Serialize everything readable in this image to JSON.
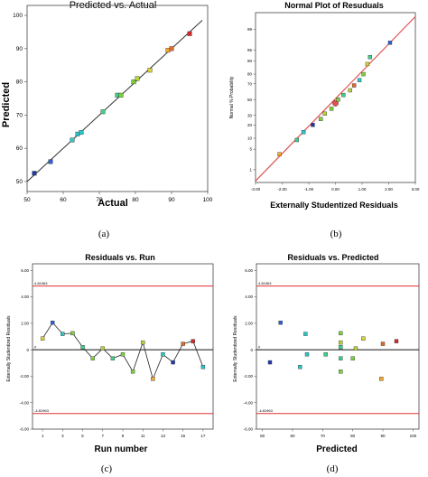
{
  "figure": {
    "captions": [
      "(a)",
      "(b)",
      "(c)",
      "(d)"
    ],
    "palette": [
      "#1f3aa8",
      "#2c5fd6",
      "#2ea8d8",
      "#2bc6c6",
      "#3fd08a",
      "#7cd23b",
      "#b6d43a",
      "#d9d23a",
      "#f0a830",
      "#e06a28",
      "#d42a2a"
    ]
  },
  "chart_data": [
    {
      "type": "scatter",
      "title": "Predicted vs. Actual",
      "xlabel": "Actual",
      "ylabel": "Predicted",
      "xlim": [
        50,
        100
      ],
      "ylim": [
        47,
        103
      ],
      "xticks": [
        50,
        60,
        70,
        80,
        90,
        100
      ],
      "yticks": [
        50,
        60,
        70,
        80,
        90,
        100
      ],
      "reference_line": {
        "from": [
          47,
          47
        ],
        "to": [
          103,
          103
        ],
        "color": "#333333"
      },
      "points": [
        {
          "x": 52,
          "y": 52.5,
          "c": 0
        },
        {
          "x": 56.5,
          "y": 56,
          "c": 1
        },
        {
          "x": 62.5,
          "y": 62.5,
          "c": 3
        },
        {
          "x": 64,
          "y": 64.3,
          "c": 3
        },
        {
          "x": 65,
          "y": 64.8,
          "c": 3
        },
        {
          "x": 71,
          "y": 71,
          "c": 4
        },
        {
          "x": 75,
          "y": 76,
          "c": 4
        },
        {
          "x": 76,
          "y": 76,
          "c": 5
        },
        {
          "x": 79.5,
          "y": 80,
          "c": 5
        },
        {
          "x": 80.5,
          "y": 81,
          "c": 6
        },
        {
          "x": 84,
          "y": 83.5,
          "c": 7
        },
        {
          "x": 89,
          "y": 89.5,
          "c": 8
        },
        {
          "x": 90,
          "y": 90,
          "c": 9
        },
        {
          "x": 95,
          "y": 94.5,
          "c": 10
        }
      ]
    },
    {
      "type": "scatter",
      "title": "Normal Plot of Resuduals",
      "xlabel": "Externally Studentized Residuals",
      "ylabel": "Normal % Probability",
      "xlim": [
        -3,
        3
      ],
      "xticks": [
        "-3.00",
        "-2.00",
        "-1.00",
        "0.00",
        "1.00",
        "2.00",
        "3.00"
      ],
      "yticks": [
        1,
        5,
        10,
        20,
        30,
        50,
        70,
        80,
        90,
        95,
        99
      ],
      "reference_line": {
        "from": [
          -3,
          0.35
        ],
        "to": [
          3,
          99.7
        ],
        "color": "#e05050"
      },
      "points": [
        {
          "x": -2.1,
          "p": 3.5,
          "c": 8
        },
        {
          "x": -1.45,
          "p": 9,
          "c": 4
        },
        {
          "x": -1.2,
          "p": 14,
          "c": 3
        },
        {
          "x": -0.85,
          "p": 20,
          "c": 0
        },
        {
          "x": -0.55,
          "p": 26,
          "c": 5
        },
        {
          "x": -0.4,
          "p": 32,
          "c": 6
        },
        {
          "x": -0.15,
          "p": 38,
          "c": 5
        },
        {
          "x": 0.0,
          "p": 45,
          "c": 10
        },
        {
          "x": 0.1,
          "p": 50,
          "c": 5
        },
        {
          "x": 0.3,
          "p": 56,
          "c": 4
        },
        {
          "x": 0.55,
          "p": 62,
          "c": 6
        },
        {
          "x": 0.7,
          "p": 68,
          "c": 9
        },
        {
          "x": 0.9,
          "p": 74,
          "c": 3
        },
        {
          "x": 1.05,
          "p": 80,
          "c": 5
        },
        {
          "x": 1.2,
          "p": 88,
          "c": 7
        },
        {
          "x": 1.3,
          "p": 92,
          "c": 4
        },
        {
          "x": 2.05,
          "p": 97,
          "c": 1
        }
      ]
    },
    {
      "type": "line",
      "title": "Residuals vs. Run",
      "xlabel": "Run number",
      "ylabel": "Externally Studentized Residuals",
      "xlim": [
        0,
        18
      ],
      "ylim": [
        -6,
        6.5
      ],
      "xticks": [
        1,
        3,
        5,
        7,
        9,
        11,
        13,
        15,
        17
      ],
      "yticks": [
        "-6.00",
        "-4.00",
        "-2.00",
        "0",
        "2.00",
        "4.00",
        "6.00"
      ],
      "limit_lines": {
        "upper": 4.81963,
        "lower": -4.81963,
        "upper_label": "4.81963",
        "lower_label": "-4.81963",
        "zero_label": "0"
      },
      "points": [
        {
          "x": 1,
          "y": 0.85,
          "c": 7
        },
        {
          "x": 2,
          "y": 2.05,
          "c": 1
        },
        {
          "x": 3,
          "y": 1.2,
          "c": 3
        },
        {
          "x": 4,
          "y": 1.25,
          "c": 5
        },
        {
          "x": 5,
          "y": 0.2,
          "c": 4
        },
        {
          "x": 6,
          "y": -0.65,
          "c": 5
        },
        {
          "x": 7,
          "y": 0.1,
          "c": 6
        },
        {
          "x": 8,
          "y": -0.65,
          "c": 4
        },
        {
          "x": 9,
          "y": -0.35,
          "c": 5
        },
        {
          "x": 10,
          "y": -1.65,
          "c": 5
        },
        {
          "x": 11,
          "y": 0.55,
          "c": 6
        },
        {
          "x": 12,
          "y": -2.2,
          "c": 8
        },
        {
          "x": 13,
          "y": -0.35,
          "c": 3
        },
        {
          "x": 14,
          "y": -0.95,
          "c": 0
        },
        {
          "x": 15,
          "y": 0.45,
          "c": 9
        },
        {
          "x": 16,
          "y": 0.65,
          "c": 10
        },
        {
          "x": 17,
          "y": -1.3,
          "c": 3
        }
      ]
    },
    {
      "type": "scatter",
      "title": "Residuals vs. Predicted",
      "xlabel": "Predicted",
      "ylabel": "Externally Studentized Residuals",
      "xlim": [
        48,
        102
      ],
      "ylim": [
        -6,
        6.5
      ],
      "xticks": [
        50,
        60,
        70,
        80,
        90,
        100
      ],
      "yticks": [
        "-6.00",
        "-4.00",
        "-2.00",
        "0",
        "2.00",
        "4.00",
        "6.00"
      ],
      "limit_lines": {
        "upper": 4.81963,
        "lower": -4.81963,
        "upper_label": "4.81963",
        "lower_label": "-4.81963",
        "zero_label": "0"
      },
      "points": [
        {
          "x": 52.5,
          "y": -0.95,
          "c": 0
        },
        {
          "x": 56,
          "y": 2.05,
          "c": 1
        },
        {
          "x": 62.5,
          "y": -1.3,
          "c": 3
        },
        {
          "x": 64.3,
          "y": 1.2,
          "c": 3
        },
        {
          "x": 64.8,
          "y": -0.35,
          "c": 3
        },
        {
          "x": 71,
          "y": -0.35,
          "c": 4
        },
        {
          "x": 76,
          "y": 1.25,
          "c": 5
        },
        {
          "x": 76,
          "y": 0.55,
          "c": 6
        },
        {
          "x": 76,
          "y": -0.65,
          "c": 4
        },
        {
          "x": 76,
          "y": 0.2,
          "c": 4
        },
        {
          "x": 76,
          "y": -1.65,
          "c": 5
        },
        {
          "x": 80,
          "y": -0.65,
          "c": 5
        },
        {
          "x": 81,
          "y": 0.1,
          "c": 6
        },
        {
          "x": 83.5,
          "y": 0.85,
          "c": 7
        },
        {
          "x": 89.5,
          "y": -2.2,
          "c": 8
        },
        {
          "x": 90,
          "y": 0.45,
          "c": 9
        },
        {
          "x": 94.5,
          "y": 0.65,
          "c": 10
        }
      ]
    }
  ]
}
